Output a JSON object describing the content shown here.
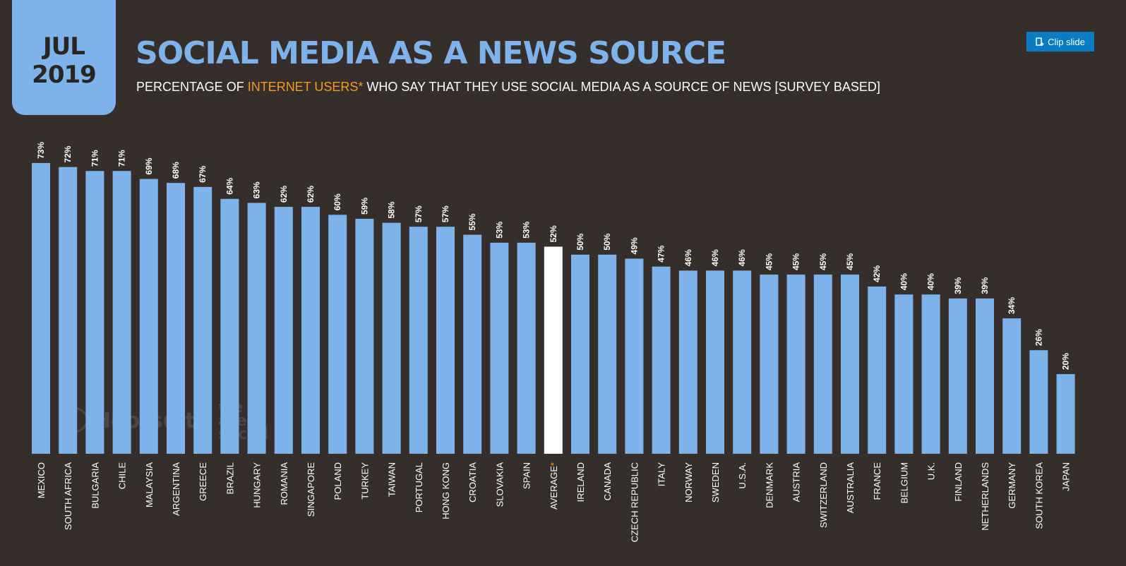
{
  "header": {
    "month": "JUL",
    "year": "2019",
    "title": "SOCIAL MEDIA AS A NEWS SOURCE",
    "subtitle_pre": "PERCENTAGE OF ",
    "subtitle_highlight": "INTERNET USERS*",
    "subtitle_post": " WHO SAY THAT THEY USE SOCIAL MEDIA AS A SOURCE OF NEWS [SURVEY BASED]"
  },
  "toolbar": {
    "clip_label": "Clip slide",
    "clip_icon": "clip-icon"
  },
  "watermark": {
    "brand1": "Hootsuite",
    "brand2_lines": [
      "we",
      "are",
      "social"
    ]
  },
  "colors": {
    "background": "#352e2a",
    "bar": "#7db3ea",
    "highlight_bar": "#ffffff",
    "accent": "#f59a23"
  },
  "chart_data": {
    "type": "bar",
    "title": "SOCIAL MEDIA AS A NEWS SOURCE",
    "ylim": [
      0,
      100
    ],
    "grid": false,
    "categories": [
      "MEXICO",
      "SOUTH AFRICA",
      "BULGARIA",
      "CHILE",
      "MALAYSIA",
      "ARGENTINA",
      "GREECE",
      "BRAZIL",
      "HUNGARY",
      "ROMANIA",
      "SINGAPORE",
      "POLAND",
      "TURKEY",
      "TAIWAN",
      "PORTUGAL",
      "HONG KONG",
      "CROATIA",
      "SLOVAKIA",
      "SPAIN",
      "AVERAGE*",
      "IRELAND",
      "CANADA",
      "CZECH REPUBLIC",
      "ITALY",
      "NORWAY",
      "SWEDEN",
      "U.S.A.",
      "DENMARK",
      "AUSTRIA",
      "SWITZERLAND",
      "AUSTRALIA",
      "FRANCE",
      "BELGIUM",
      "U.K.",
      "FINLAND",
      "NETHERLANDS",
      "GERMANY",
      "SOUTH KOREA",
      "JAPAN"
    ],
    "values": [
      73,
      72,
      71,
      71,
      69,
      68,
      67,
      64,
      63,
      62,
      62,
      60,
      59,
      58,
      57,
      57,
      55,
      53,
      53,
      52,
      50,
      50,
      49,
      47,
      46,
      46,
      46,
      45,
      45,
      45,
      45,
      42,
      40,
      40,
      39,
      39,
      34,
      26,
      20
    ],
    "value_labels": [
      "73%",
      "72%",
      "71%",
      "71%",
      "69%",
      "68%",
      "67%",
      "64%",
      "63%",
      "62%",
      "62%",
      "60%",
      "59%",
      "58%",
      "57%",
      "57%",
      "55%",
      "53%",
      "53%",
      "52%",
      "50%",
      "50%",
      "49%",
      "47%",
      "46%",
      "46%",
      "46%",
      "45%",
      "45%",
      "45%",
      "45%",
      "42%",
      "40%",
      "40%",
      "39%",
      "39%",
      "34%",
      "26%",
      "20%"
    ],
    "highlight_category": "AVERAGE*"
  }
}
